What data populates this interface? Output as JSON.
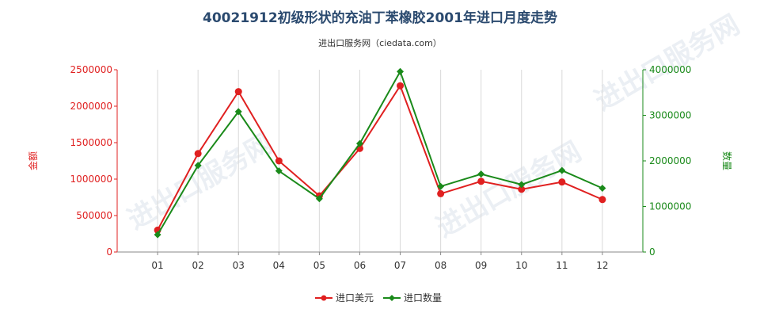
{
  "chart_data": {
    "type": "line",
    "title": "40021912初级形状的充油丁苯橡胶2001年进口月度走势",
    "subtitle": "进出口服务网（ciedata.com）",
    "categories": [
      "01",
      "02",
      "03",
      "04",
      "05",
      "06",
      "07",
      "08",
      "09",
      "10",
      "11",
      "12"
    ],
    "y_left": {
      "label": "金额",
      "ylim": [
        0,
        2500000
      ],
      "ticks": [
        "0",
        "500000",
        "1000000",
        "1500000",
        "2000000",
        "2500000"
      ],
      "color": "#e02020"
    },
    "y_right": {
      "label": "数量",
      "ylim": [
        0,
        4000000
      ],
      "ticks": [
        "0",
        "1000000",
        "2000000",
        "3000000",
        "4000000"
      ],
      "color": "#1a8a1a"
    },
    "series": [
      {
        "name": "进口美元",
        "axis": "left",
        "color": "#e02020",
        "marker": "circle",
        "values": [
          300000,
          1350000,
          2200000,
          1250000,
          770000,
          1420000,
          2280000,
          800000,
          970000,
          860000,
          960000,
          720000
        ]
      },
      {
        "name": "进口数量",
        "axis": "right",
        "color": "#1a8a1a",
        "marker": "diamond",
        "values": [
          380000,
          1900000,
          3080000,
          1780000,
          1170000,
          2380000,
          3960000,
          1440000,
          1710000,
          1480000,
          1790000,
          1400000
        ]
      }
    ],
    "grid": "vertical",
    "legend_position": "bottom-center"
  },
  "watermark": "进出口服务网"
}
